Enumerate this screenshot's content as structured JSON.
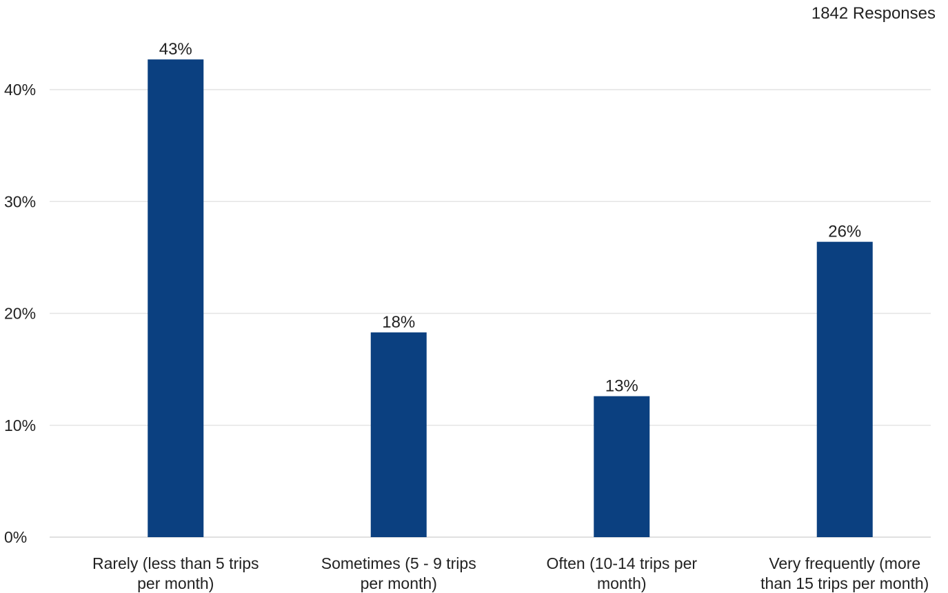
{
  "responses_label": "1842 Responses",
  "colors": {
    "bar": "#0b4080",
    "grid": "#e4e4e4",
    "axis": "#d6d6d6"
  },
  "chart_data": {
    "type": "bar",
    "categories": [
      [
        "Rarely (less than 5 trips",
        "per month)"
      ],
      [
        "Sometimes (5 - 9 trips",
        "per month)"
      ],
      [
        "Often (10-14 trips per",
        "month)"
      ],
      [
        "Very frequently (more",
        "than 15 trips per month)"
      ]
    ],
    "values": [
      42.7,
      18.3,
      12.6,
      26.4
    ],
    "data_labels": [
      "43%",
      "18%",
      "13%",
      "26%"
    ],
    "ylim": [
      0,
      40
    ],
    "yticks": [
      0,
      10,
      20,
      30,
      40
    ],
    "ytick_labels": [
      "0%",
      "10%",
      "20%",
      "30%",
      "40%"
    ],
    "grid": true,
    "title": "",
    "xlabel": "",
    "ylabel": ""
  }
}
